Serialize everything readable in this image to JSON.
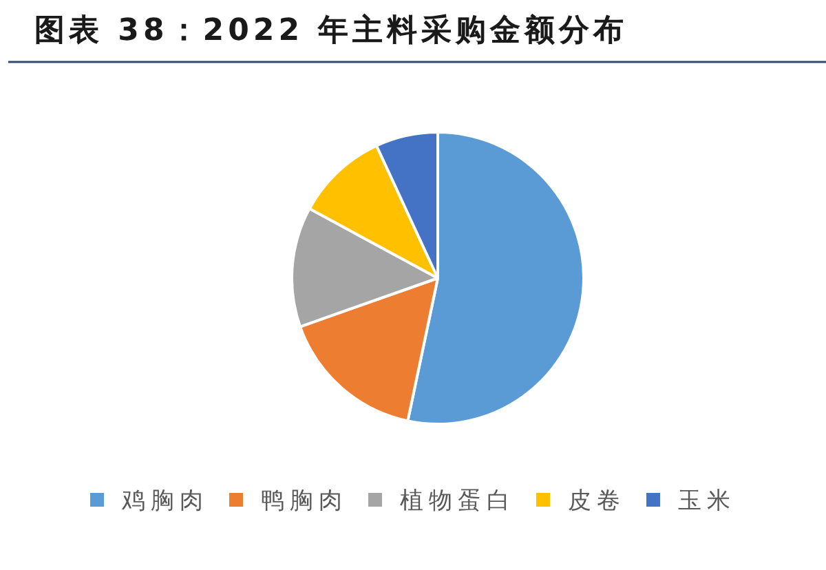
{
  "chart_data": {
    "type": "pie",
    "title": "图表 38：2022 年主料采购金额分布",
    "categories": [
      "鸡胸肉",
      "鸭胸肉",
      "植物蛋白",
      "皮卷",
      "玉米"
    ],
    "values": [
      53.3,
      16.3,
      13.3,
      10.2,
      6.9
    ],
    "colors": [
      "#5b9bd5",
      "#ed7d31",
      "#a5a5a5",
      "#ffc000",
      "#4472c4"
    ],
    "legend": "bottom"
  }
}
